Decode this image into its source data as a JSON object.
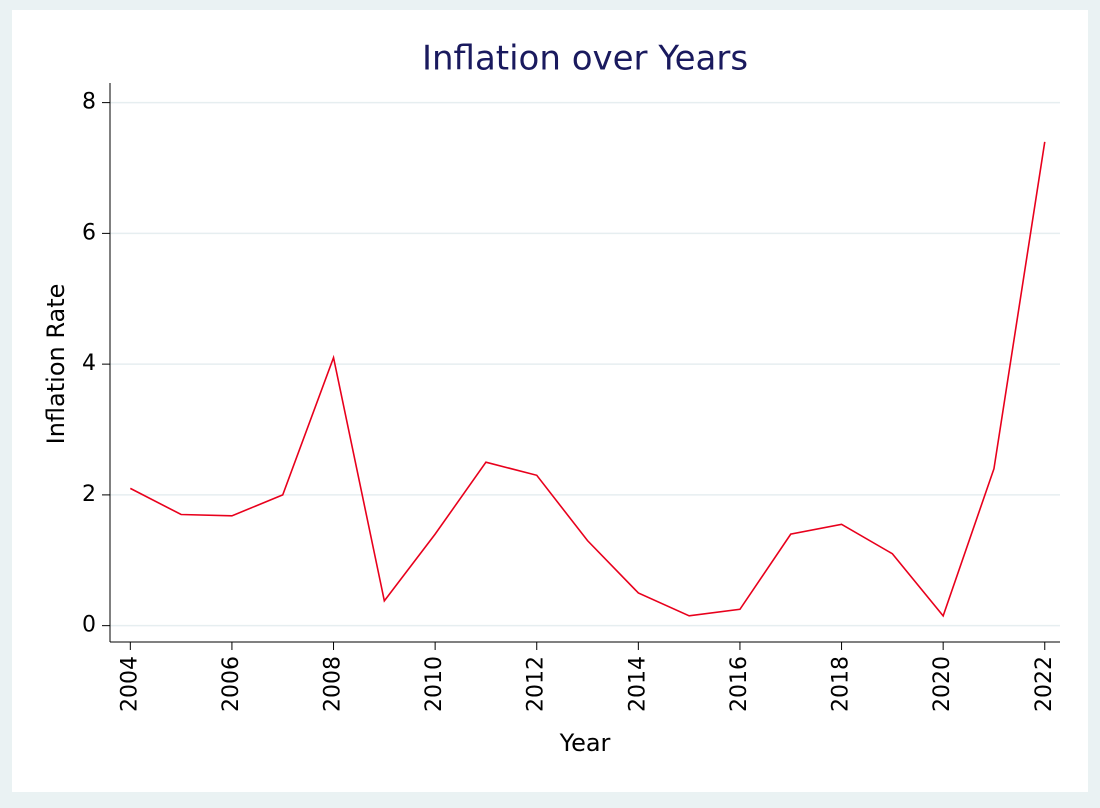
{
  "chart_data": {
    "type": "line",
    "title": "Inflation over Years",
    "x_label": "Year",
    "y_label": "Inflation Rate",
    "x": [
      2004,
      2005,
      2006,
      2007,
      2008,
      2009,
      2010,
      2011,
      2012,
      2013,
      2014,
      2015,
      2016,
      2017,
      2018,
      2019,
      2020,
      2021,
      2022
    ],
    "series": [
      {
        "name": "Inflation Rate",
        "color": "#e8001c",
        "values": [
          2.1,
          1.7,
          1.68,
          2.0,
          4.1,
          0.38,
          1.4,
          2.5,
          2.3,
          1.3,
          0.5,
          0.15,
          0.25,
          1.4,
          1.55,
          1.1,
          0.15,
          2.4,
          7.4
        ]
      }
    ],
    "xlim": [
      2003.6,
      2022.3
    ],
    "xticks": [
      2004,
      2006,
      2008,
      2010,
      2012,
      2014,
      2016,
      2018,
      2020,
      2022
    ],
    "ylim": [
      -0.25,
      8.3
    ],
    "yticks": [
      0,
      2,
      4,
      6,
      8
    ],
    "grid": true
  }
}
